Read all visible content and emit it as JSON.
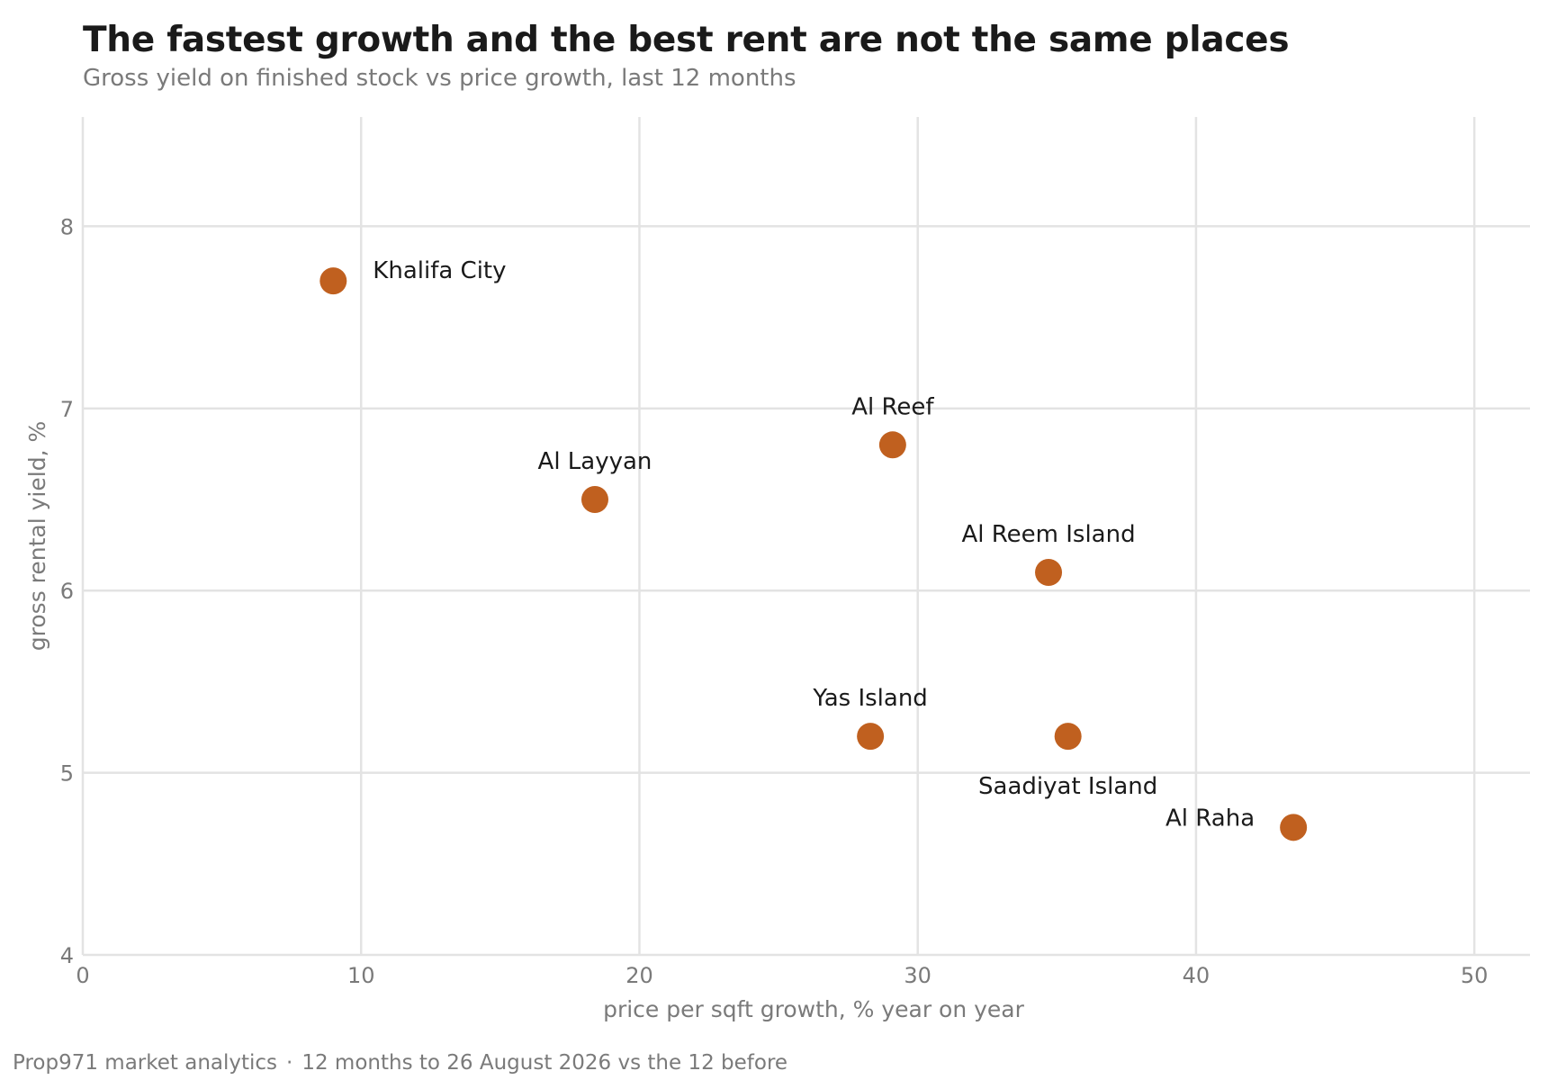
{
  "chart_data": {
    "type": "scatter",
    "title": "The fastest growth and the best rent are not the same places",
    "subtitle": "Gross yield on finished stock vs price growth, last 12 months",
    "xlabel": "price per sqft growth, % year on year",
    "ylabel": "gross rental yield, %",
    "xlim": [
      0,
      52
    ],
    "ylim": [
      4,
      8.6
    ],
    "xticks": [
      0,
      10,
      20,
      30,
      40,
      50
    ],
    "yticks": [
      4,
      5,
      6,
      7,
      8
    ],
    "grid": true,
    "marker_color": "#c0601f",
    "points": [
      {
        "label": "Khalifa City",
        "x": 9.0,
        "y": 7.7,
        "label_pos": "right"
      },
      {
        "label": "Al Layyan",
        "x": 18.4,
        "y": 6.5,
        "label_pos": "top"
      },
      {
        "label": "Al Reef",
        "x": 29.1,
        "y": 6.8,
        "label_pos": "top"
      },
      {
        "label": "Yas Island",
        "x": 28.3,
        "y": 5.2,
        "label_pos": "top"
      },
      {
        "label": "Al Reem Island",
        "x": 34.7,
        "y": 6.1,
        "label_pos": "top"
      },
      {
        "label": "Saadiyat Island",
        "x": 35.4,
        "y": 5.2,
        "label_pos": "bottom"
      },
      {
        "label": "Al Raha",
        "x": 43.5,
        "y": 4.7,
        "label_pos": "left"
      }
    ]
  },
  "footer": {
    "source": "Prop971 market analytics",
    "separator": "·",
    "period": "12 months to 26 August 2026 vs the 12 before"
  }
}
